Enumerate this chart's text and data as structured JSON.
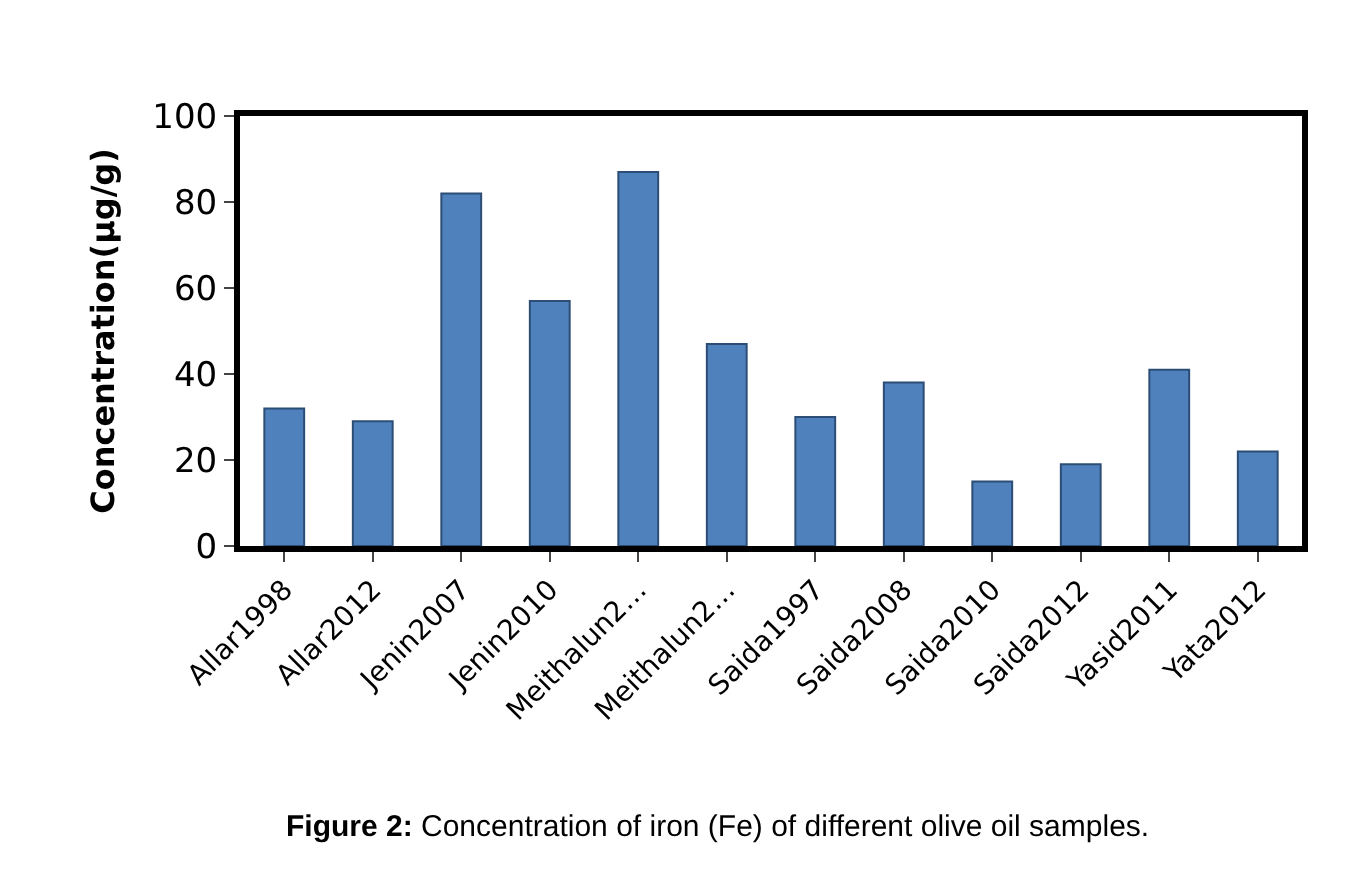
{
  "chart_data": {
    "type": "bar",
    "categories": [
      "Allar1998",
      "Allar2012",
      "Jenin2007",
      "Jenin2010",
      "Meithalun2…",
      "Meithalun2…",
      "Saida1997",
      "Saida2008",
      "Saida2010",
      "Saida2012",
      "Yasid2011",
      "Yata2012"
    ],
    "values": [
      32,
      29,
      82,
      57,
      87,
      47,
      30,
      38,
      15,
      19,
      41,
      22
    ],
    "color": "#4f81bd",
    "ylabel": "Concentration(µg/g)",
    "ylim": [
      0,
      100
    ],
    "yticks": [
      0,
      20,
      40,
      60,
      80,
      100
    ],
    "annotations": [
      "Figure 2: Concentration of iron (Fe) of different olive oil samples."
    ]
  }
}
